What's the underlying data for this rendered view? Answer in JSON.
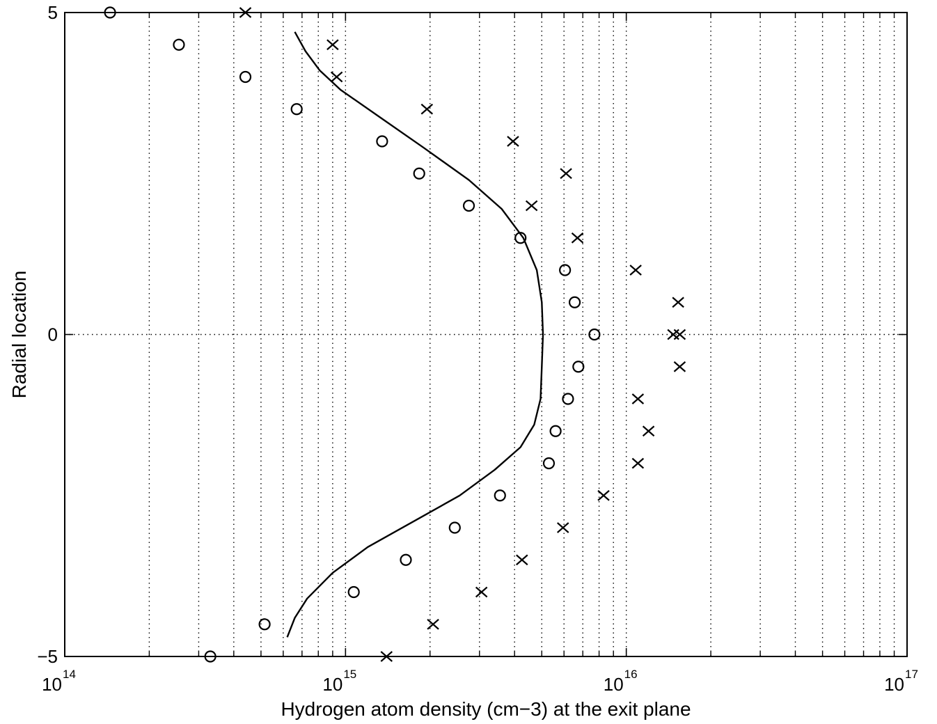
{
  "chart_data": {
    "type": "scatter",
    "xlabel": "Hydrogen atom density (cm−3) at the exit plane",
    "ylabel": "Radial location",
    "xscale": "log",
    "xlim": [
      100000000000000.0,
      1e+17
    ],
    "ylim": [
      -5,
      5
    ],
    "grid": true,
    "x_ticks": [
      {
        "base": "10",
        "exp": "14",
        "value": 100000000000000.0
      },
      {
        "base": "10",
        "exp": "15",
        "value": 1000000000000000.0
      },
      {
        "base": "10",
        "exp": "16",
        "value": 1e+16
      },
      {
        "base": "10",
        "exp": "17",
        "value": 1e+17
      }
    ],
    "y_ticks": [
      {
        "label": "5",
        "value": 5
      },
      {
        "label": "0",
        "value": 0
      },
      {
        "label": "−5",
        "value": -5
      }
    ],
    "series": [
      {
        "marker": "circle",
        "points": [
          {
            "x": 145000000000000.0,
            "y": 5.0
          },
          {
            "x": 255000000000000.0,
            "y": 4.5
          },
          {
            "x": 440000000000000.0,
            "y": 4.0
          },
          {
            "x": 670000000000000.0,
            "y": 3.5
          },
          {
            "x": 1350000000000000.0,
            "y": 3.0
          },
          {
            "x": 1830000000000000.0,
            "y": 2.5
          },
          {
            "x": 2750000000000000.0,
            "y": 2.0
          },
          {
            "x": 4200000000000000.0,
            "y": 1.5
          },
          {
            "x": 6050000000000000.0,
            "y": 1.0
          },
          {
            "x": 6550000000000000.0,
            "y": 0.5
          },
          {
            "x": 7700000000000000.0,
            "y": 0.0
          },
          {
            "x": 6750000000000000.0,
            "y": -0.5
          },
          {
            "x": 6200000000000000.0,
            "y": -1.0
          },
          {
            "x": 5600000000000000.0,
            "y": -1.5
          },
          {
            "x": 5300000000000000.0,
            "y": -2.0
          },
          {
            "x": 3550000000000000.0,
            "y": -2.5
          },
          {
            "x": 2450000000000000.0,
            "y": -3.0
          },
          {
            "x": 1640000000000000.0,
            "y": -3.5
          },
          {
            "x": 1070000000000000.0,
            "y": -4.0
          },
          {
            "x": 515000000000000.0,
            "y": -4.5
          },
          {
            "x": 330000000000000.0,
            "y": -5.0
          }
        ]
      },
      {
        "marker": "x",
        "points": [
          {
            "x": 440000000000000.0,
            "y": 5.0
          },
          {
            "x": 900000000000000.0,
            "y": 4.5
          },
          {
            "x": 930000000000000.0,
            "y": 4.0
          },
          {
            "x": 1950000000000000.0,
            "y": 3.5
          },
          {
            "x": 3950000000000000.0,
            "y": 3.0
          },
          {
            "x": 6100000000000000.0,
            "y": 2.5
          },
          {
            "x": 4600000000000000.0,
            "y": 2.0
          },
          {
            "x": 6700000000000000.0,
            "y": 1.5
          },
          {
            "x": 1.08e+16,
            "y": 1.0
          },
          {
            "x": 1.53e+16,
            "y": 0.5
          },
          {
            "x": 1.47e+16,
            "y": 0.0
          },
          {
            "x": 1.55e+16,
            "y": 0.0
          },
          {
            "x": 1.55e+16,
            "y": -0.5
          },
          {
            "x": 1.1e+16,
            "y": -1.0
          },
          {
            "x": 1.2e+16,
            "y": -1.5
          },
          {
            "x": 1.1e+16,
            "y": -2.0
          },
          {
            "x": 8300000000000000.0,
            "y": -2.5
          },
          {
            "x": 5950000000000000.0,
            "y": -3.0
          },
          {
            "x": 4250000000000000.0,
            "y": -3.5
          },
          {
            "x": 3050000000000000.0,
            "y": -4.0
          },
          {
            "x": 2050000000000000.0,
            "y": -4.5
          },
          {
            "x": 1400000000000000.0,
            "y": -5.0
          }
        ]
      },
      {
        "marker": "none",
        "line": "solid",
        "points": [
          {
            "x": 660000000000000.0,
            "y": 4.7
          },
          {
            "x": 720000000000000.0,
            "y": 4.4
          },
          {
            "x": 810000000000000.0,
            "y": 4.1
          },
          {
            "x": 960000000000000.0,
            "y": 3.8
          },
          {
            "x": 1300000000000000.0,
            "y": 3.4
          },
          {
            "x": 1900000000000000.0,
            "y": 2.9
          },
          {
            "x": 2750000000000000.0,
            "y": 2.4
          },
          {
            "x": 3600000000000000.0,
            "y": 1.95
          },
          {
            "x": 4300000000000000.0,
            "y": 1.5
          },
          {
            "x": 4800000000000000.0,
            "y": 1.0
          },
          {
            "x": 5000000000000000.0,
            "y": 0.5
          },
          {
            "x": 5050000000000000.0,
            "y": 0.0
          },
          {
            "x": 5000000000000000.0,
            "y": -0.5
          },
          {
            "x": 4950000000000000.0,
            "y": -1.0
          },
          {
            "x": 4700000000000000.0,
            "y": -1.4
          },
          {
            "x": 4200000000000000.0,
            "y": -1.75
          },
          {
            "x": 3400000000000000.0,
            "y": -2.1
          },
          {
            "x": 2550000000000000.0,
            "y": -2.5
          },
          {
            "x": 1750000000000000.0,
            "y": -2.9
          },
          {
            "x": 1200000000000000.0,
            "y": -3.3
          },
          {
            "x": 900000000000000.0,
            "y": -3.7
          },
          {
            "x": 730000000000000.0,
            "y": -4.1
          },
          {
            "x": 660000000000000.0,
            "y": -4.4
          },
          {
            "x": 620000000000000.0,
            "y": -4.7
          }
        ]
      }
    ]
  }
}
